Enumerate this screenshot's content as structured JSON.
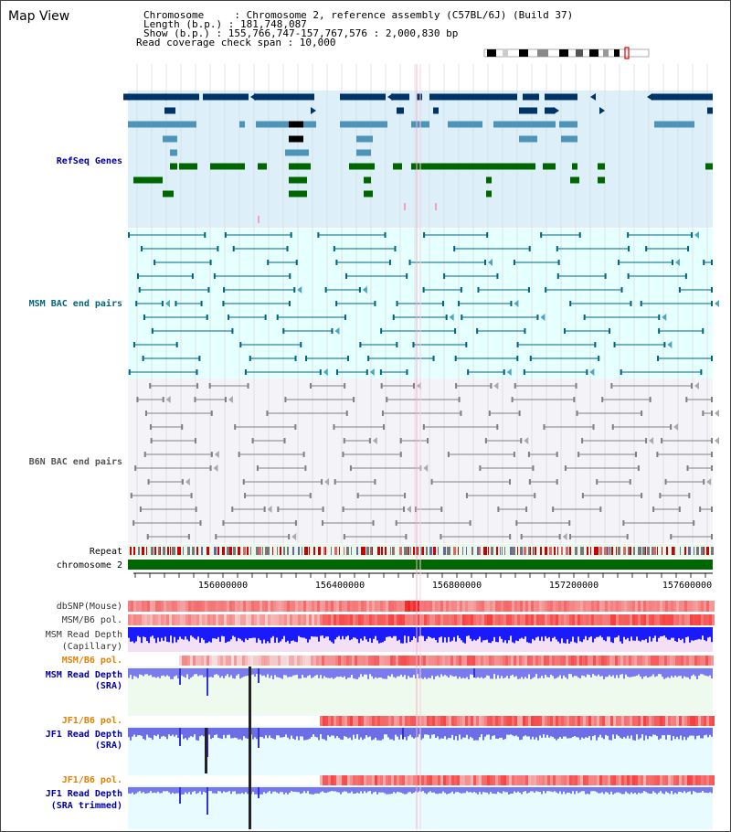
{
  "page": {
    "title": "Map View"
  },
  "info": {
    "chromosome_label": "Chromosome     : Chromosome 2, reference assembly (C57BL/6J) (Build 37)",
    "length_label": "Length (b.p.) : 181,748,087",
    "show_label": "Show (b.p.) : 155,766,747-157,767,576 : 2,000,830 bp",
    "coverage_label": "Read coverage check span : 10,000"
  },
  "tracks": {
    "refseq_genes": "RefSeq Genes",
    "msm_bac": "MSM BAC end pairs",
    "b6n_bac": "B6N BAC end pairs",
    "repeat": "Repeat",
    "chromosome": "chromosome 2",
    "dbsnp": "dbSNP(Mouse)",
    "msm_b6_pol_1": "MSM/B6 pol.",
    "msm_read_depth_cap_1": "MSM Read Depth",
    "msm_read_depth_cap_2": "(Capillary)",
    "msm_b6_pol_2": "MSM/B6 pol.",
    "msm_read_depth_sra_1": "MSM Read Depth",
    "msm_read_depth_sra_2": "(SRA)",
    "jf1_b6_pol_1": "JF1/B6 pol.",
    "jf1_read_depth_sra_1": "JF1 Read Depth",
    "jf1_read_depth_sra_2": "(SRA)",
    "jf1_b6_pol_2": "JF1/B6 pol.",
    "jf1_read_depth_trim_1": "JF1 Read Depth",
    "jf1_read_depth_trim_2": "(SRA trimmed)"
  },
  "axis": {
    "ticks": [
      "156000000",
      "156400000",
      "156800000",
      "157200000",
      "157600000"
    ]
  },
  "colors": {
    "refseq_bg": "#ddf0fa",
    "msm_bg": "#e6ffff",
    "b6n_bg": "#f4f4f8",
    "navy": "#003366",
    "steel": "#4d94b8",
    "green": "#006600",
    "teal": "#006680",
    "gray": "#808080",
    "chrom": "#006600",
    "label_blue": "#0000a0",
    "label_teal": "#006677",
    "label_gray": "#555555",
    "label_orange": "#e08000"
  }
}
